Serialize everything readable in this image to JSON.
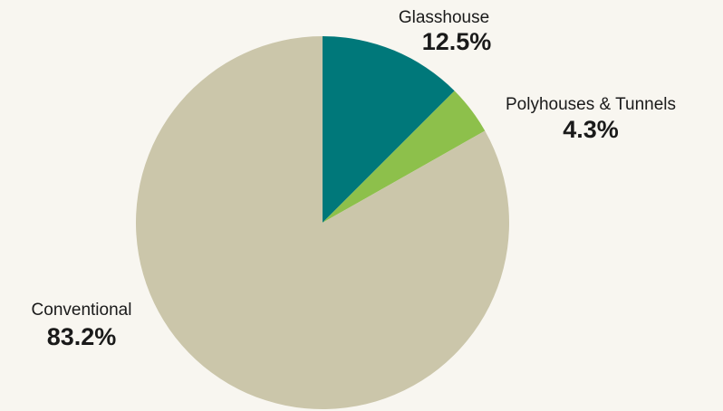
{
  "chart_data": {
    "type": "pie",
    "categories": [
      "Glasshouse",
      "Polyhouses & Tunnels",
      "Conventional"
    ],
    "values": [
      12.5,
      4.3,
      83.2
    ],
    "value_labels": [
      "12.5%",
      "4.3%",
      "83.2%"
    ],
    "colors": [
      "#00787a",
      "#8dc04b",
      "#cbc6aa"
    ]
  }
}
